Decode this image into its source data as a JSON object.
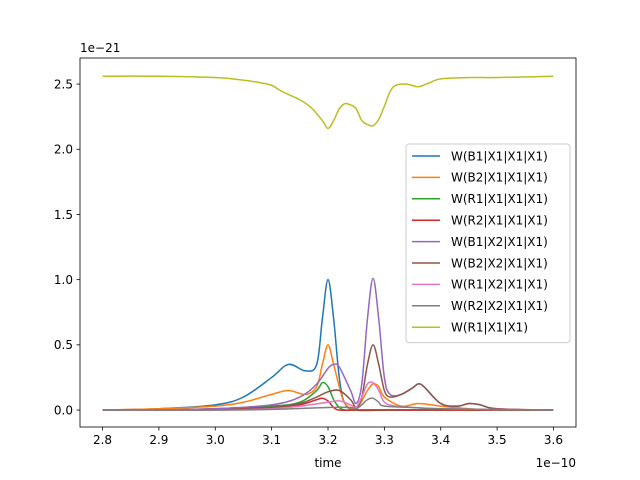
{
  "chart_data": {
    "type": "line",
    "xlabel": "time",
    "ylabel": "",
    "x_offset_label": "1e−10",
    "y_offset_label": "1e−21",
    "xlim": [
      2.76,
      3.64
    ],
    "ylim": [
      -0.13,
      2.7
    ],
    "x_ticks": [
      2.8,
      2.9,
      3.0,
      3.1,
      3.2,
      3.3,
      3.4,
      3.5,
      3.6
    ],
    "x_tick_labels": [
      "2.8",
      "2.9",
      "3.0",
      "3.1",
      "3.2",
      "3.3",
      "3.4",
      "3.5",
      "3.6"
    ],
    "y_ticks": [
      0.0,
      0.5,
      1.0,
      1.5,
      2.0,
      2.5
    ],
    "y_tick_labels": [
      "0.0",
      "0.5",
      "1.0",
      "1.5",
      "2.0",
      "2.5"
    ],
    "grid": false,
    "legend_position": "right",
    "series": [
      {
        "name": "W(B1|X1|X1|X1)",
        "color": "#1f77b4",
        "x": [
          2.8,
          2.9,
          3.0,
          3.05,
          3.1,
          3.13,
          3.16,
          3.18,
          3.19,
          3.2,
          3.21,
          3.22,
          3.23,
          3.25,
          3.3,
          3.4,
          3.5,
          3.6
        ],
        "y": [
          0.0,
          0.01,
          0.04,
          0.1,
          0.25,
          0.35,
          0.3,
          0.35,
          0.7,
          1.0,
          0.7,
          0.25,
          0.05,
          0.0,
          0.0,
          0.0,
          0.0,
          0.0
        ]
      },
      {
        "name": "W(B2|X1|X1|X1)",
        "color": "#ff7f0e",
        "x": [
          2.8,
          2.9,
          3.0,
          3.05,
          3.1,
          3.13,
          3.16,
          3.18,
          3.19,
          3.2,
          3.21,
          3.22,
          3.23,
          3.25,
          3.27,
          3.28,
          3.29,
          3.3,
          3.33,
          3.36,
          3.4,
          3.45,
          3.5,
          3.6
        ],
        "y": [
          0.0,
          0.01,
          0.03,
          0.06,
          0.12,
          0.15,
          0.12,
          0.18,
          0.35,
          0.5,
          0.35,
          0.18,
          0.05,
          0.01,
          0.15,
          0.2,
          0.18,
          0.1,
          0.03,
          0.05,
          0.03,
          0.01,
          0.0,
          0.0
        ]
      },
      {
        "name": "W(R1|X1|X1|X1)",
        "color": "#2ca02c",
        "x": [
          2.8,
          2.9,
          3.0,
          3.1,
          3.15,
          3.18,
          3.19,
          3.2,
          3.21,
          3.22,
          3.23,
          3.25,
          3.3,
          3.4,
          3.6
        ],
        "y": [
          0.0,
          0.0,
          0.01,
          0.03,
          0.06,
          0.15,
          0.21,
          0.18,
          0.08,
          0.02,
          0.0,
          0.0,
          0.0,
          0.0,
          0.0
        ]
      },
      {
        "name": "W(R2|X1|X1|X1)",
        "color": "#d62728",
        "x": [
          2.8,
          2.9,
          3.0,
          3.1,
          3.15,
          3.18,
          3.19,
          3.2,
          3.21,
          3.22,
          3.25,
          3.3,
          3.6
        ],
        "y": [
          0.0,
          0.0,
          0.01,
          0.02,
          0.04,
          0.08,
          0.09,
          0.07,
          0.02,
          0.0,
          0.0,
          0.0,
          0.0
        ]
      },
      {
        "name": "W(B1|X2|X1|X1)",
        "color": "#9467bd",
        "x": [
          2.8,
          2.9,
          3.0,
          3.1,
          3.15,
          3.18,
          3.2,
          3.21,
          3.22,
          3.24,
          3.25,
          3.26,
          3.27,
          3.28,
          3.29,
          3.3,
          3.31,
          3.33,
          3.35,
          3.36,
          3.37,
          3.4,
          3.43,
          3.45,
          3.47,
          3.5,
          3.6
        ],
        "y": [
          0.0,
          0.0,
          0.01,
          0.04,
          0.1,
          0.2,
          0.32,
          0.35,
          0.33,
          0.15,
          0.05,
          0.2,
          0.7,
          1.01,
          0.7,
          0.25,
          0.12,
          0.12,
          0.17,
          0.2,
          0.18,
          0.05,
          0.03,
          0.05,
          0.04,
          0.01,
          0.0
        ]
      },
      {
        "name": "W(B2|X2|X1|X1)",
        "color": "#8c564b",
        "x": [
          2.8,
          2.9,
          3.0,
          3.1,
          3.15,
          3.18,
          3.2,
          3.22,
          3.24,
          3.25,
          3.26,
          3.27,
          3.28,
          3.29,
          3.3,
          3.31,
          3.33,
          3.35,
          3.36,
          3.37,
          3.4,
          3.43,
          3.45,
          3.47,
          3.5,
          3.6
        ],
        "y": [
          0.0,
          0.0,
          0.0,
          0.02,
          0.05,
          0.1,
          0.14,
          0.15,
          0.08,
          0.02,
          0.1,
          0.35,
          0.5,
          0.35,
          0.15,
          0.1,
          0.12,
          0.17,
          0.2,
          0.18,
          0.05,
          0.03,
          0.05,
          0.04,
          0.01,
          0.0
        ]
      },
      {
        "name": "W(R1|X2|X1|X1)",
        "color": "#e377c2",
        "x": [
          2.8,
          2.9,
          3.0,
          3.1,
          3.15,
          3.2,
          3.22,
          3.24,
          3.25,
          3.26,
          3.27,
          3.28,
          3.29,
          3.3,
          3.32,
          3.35,
          3.4,
          3.6
        ],
        "y": [
          0.0,
          0.0,
          0.0,
          0.01,
          0.03,
          0.06,
          0.07,
          0.04,
          0.02,
          0.1,
          0.2,
          0.21,
          0.15,
          0.06,
          0.03,
          0.02,
          0.01,
          0.0
        ]
      },
      {
        "name": "W(R2|X2|X1|X1)",
        "color": "#7f7f7f",
        "x": [
          2.8,
          2.9,
          3.0,
          3.1,
          3.2,
          3.24,
          3.25,
          3.26,
          3.27,
          3.28,
          3.29,
          3.3,
          3.35,
          3.4,
          3.6
        ],
        "y": [
          0.0,
          0.0,
          0.0,
          0.005,
          0.02,
          0.02,
          0.01,
          0.04,
          0.08,
          0.09,
          0.06,
          0.03,
          0.02,
          0.01,
          0.0
        ]
      },
      {
        "name": "W(R1|X1|X1)",
        "color": "#bcbd22",
        "x": [
          2.8,
          2.9,
          3.0,
          3.05,
          3.08,
          3.1,
          3.12,
          3.15,
          3.17,
          3.19,
          3.2,
          3.21,
          3.22,
          3.23,
          3.24,
          3.25,
          3.26,
          3.27,
          3.28,
          3.29,
          3.3,
          3.31,
          3.32,
          3.34,
          3.36,
          3.38,
          3.4,
          3.45,
          3.5,
          3.6
        ],
        "y": [
          2.56,
          2.56,
          2.55,
          2.53,
          2.51,
          2.49,
          2.44,
          2.38,
          2.32,
          2.22,
          2.16,
          2.22,
          2.31,
          2.35,
          2.34,
          2.31,
          2.22,
          2.19,
          2.18,
          2.23,
          2.33,
          2.44,
          2.49,
          2.5,
          2.48,
          2.51,
          2.54,
          2.55,
          2.55,
          2.56
        ]
      }
    ]
  }
}
